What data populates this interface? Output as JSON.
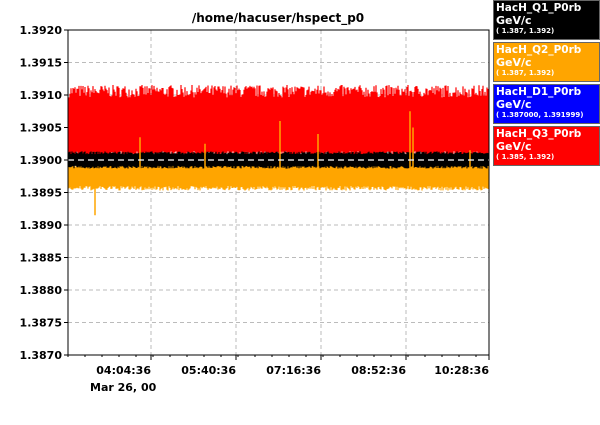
{
  "chart_data": {
    "type": "line",
    "title": "/home/hacuser/hspect_p0",
    "ylim": [
      1.387,
      1.392
    ],
    "yticks": [
      "1.3920",
      "1.3915",
      "1.3910",
      "1.3905",
      "1.3900",
      "1.3895",
      "1.3890",
      "1.3885",
      "1.3880",
      "1.3875",
      "1.3870"
    ],
    "xticks": [
      "04:04:36",
      "05:40:36",
      "07:16:36",
      "08:52:36",
      "10:28:36"
    ],
    "date_label": "Mar 26, 00",
    "grid": true,
    "series": [
      {
        "name": "HacH_Q3_P0rb",
        "unit": "GeV/c",
        "range": "( 1.385, 1.392)",
        "color": "#ff0000",
        "center": 1.39055,
        "halfwidth": 0.00055,
        "style": "band"
      },
      {
        "name": "HacH_Q2_P0rb",
        "unit": "GeV/c",
        "range": "( 1.387, 1.392)",
        "color": "#ffa500",
        "center": 1.38975,
        "halfwidth": 0.0002,
        "style": "band"
      },
      {
        "name": "HacH_Q1_P0rb",
        "unit": "GeV/c",
        "range": "( 1.387, 1.392)",
        "color": "#000000",
        "center": 1.39,
        "halfwidth": 0.00012,
        "style": "band"
      },
      {
        "name": "HacH_D1_P0rb",
        "unit": "GeV/c",
        "range": "( 1.387000, 1.391999)",
        "color": "#0000ff",
        "center": 1.39,
        "halfwidth": 0.0,
        "style": "dashed"
      }
    ]
  },
  "legend": [
    {
      "name": "HacH_Q1_P0rb",
      "unit": "GeV/c",
      "range": "( 1.387, 1.392)",
      "bg": "#000000",
      "fg": "#ffffff"
    },
    {
      "name": "HacH_Q2_P0rb",
      "unit": "GeV/c",
      "range": "( 1.387, 1.392)",
      "bg": "#ffa500",
      "fg": "#ffffff"
    },
    {
      "name": "HacH_D1_P0rb",
      "unit": "GeV/c",
      "range": "( 1.387000, 1.391999)",
      "bg": "#0000ff",
      "fg": "#ffffff"
    },
    {
      "name": "HacH_Q3_P0rb",
      "unit": "GeV/c",
      "range": "( 1.385, 1.392)",
      "bg": "#ff0000",
      "fg": "#ffffff"
    }
  ]
}
